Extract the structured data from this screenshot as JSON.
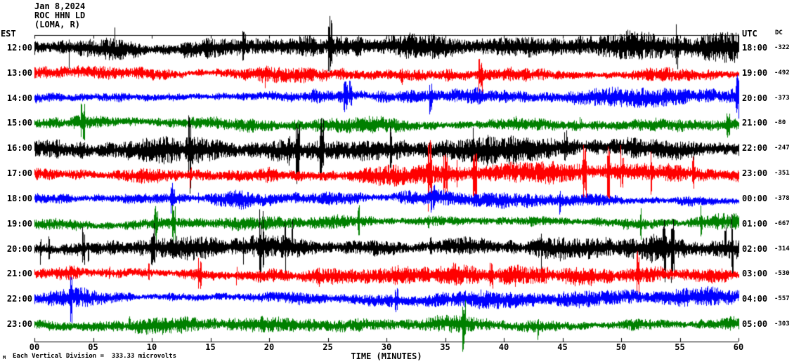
{
  "header": {
    "date": "Jan 8,2024",
    "station": "ROC HHN LD",
    "location": "(LOMA, R)"
  },
  "axes": {
    "left_timezone_label": "EST",
    "right_timezone_label": "UTC",
    "dc_column_label": "DC",
    "xlabel": "TIME (MINUTES)"
  },
  "footer": {
    "scale_note": "Each Vertical Division =  333.33 microvolts",
    "corner_mark": "M"
  },
  "chart_data": {
    "type": "seismogram-helicorder",
    "title": "ROC HHN LD  Jan 8,2024",
    "xlabel": "TIME (MINUTES)",
    "x_range_minutes": [
      0,
      60
    ],
    "x_ticks": [
      "00",
      "05",
      "10",
      "15",
      "20",
      "25",
      "30",
      "35",
      "40",
      "45",
      "50",
      "55",
      "60"
    ],
    "vertical_division_microvolts": 333.33,
    "trace_color_cycle": [
      "#000000",
      "#ff0000",
      "#0000ff",
      "#008000"
    ],
    "noise_seed": 42,
    "rows": [
      {
        "est": "12:00",
        "utc": "18:00",
        "dc": -322,
        "color": "#000000",
        "amp": 16,
        "spike_rate": 0.01
      },
      {
        "est": "13:00",
        "utc": "19:00",
        "dc": -492,
        "color": "#ff0000",
        "amp": 11,
        "spike_rate": 0.006
      },
      {
        "est": "14:00",
        "utc": "20:00",
        "dc": -373,
        "color": "#0000ff",
        "amp": 10,
        "spike_rate": 0.005
      },
      {
        "est": "15:00",
        "utc": "21:00",
        "dc": -80,
        "color": "#008000",
        "amp": 9,
        "spike_rate": 0.005
      },
      {
        "est": "16:00",
        "utc": "22:00",
        "dc": -247,
        "color": "#000000",
        "amp": 14,
        "spike_rate": 0.008
      },
      {
        "est": "17:00",
        "utc": "23:00",
        "dc": -351,
        "color": "#ff0000",
        "amp": 11,
        "spike_rate": 0.006
      },
      {
        "est": "18:00",
        "utc": "00:00",
        "dc": -378,
        "color": "#0000ff",
        "amp": 10,
        "spike_rate": 0.005
      },
      {
        "est": "19:00",
        "utc": "01:00",
        "dc": -667,
        "color": "#008000",
        "amp": 9,
        "spike_rate": 0.005
      },
      {
        "est": "20:00",
        "utc": "02:00",
        "dc": -314,
        "color": "#000000",
        "amp": 13,
        "spike_rate": 0.008
      },
      {
        "est": "21:00",
        "utc": "03:00",
        "dc": -530,
        "color": "#ff0000",
        "amp": 11,
        "spike_rate": 0.006
      },
      {
        "est": "22:00",
        "utc": "04:00",
        "dc": -557,
        "color": "#0000ff",
        "amp": 10,
        "spike_rate": 0.005
      },
      {
        "est": "23:00",
        "utc": "05:00",
        "dc": -303,
        "color": "#008000",
        "amp": 9,
        "spike_rate": 0.005
      }
    ]
  }
}
